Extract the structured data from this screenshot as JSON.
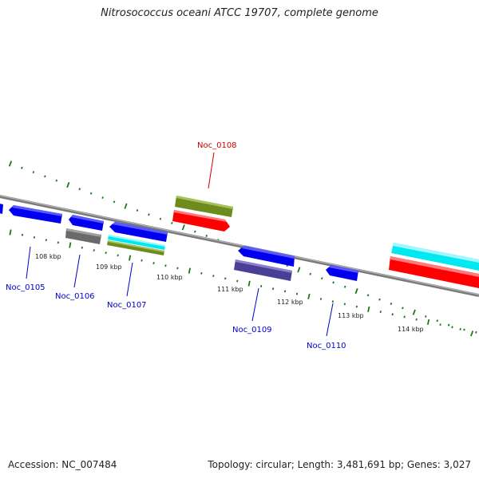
{
  "title": "Nitrosococcus oceani ATCC 19707, complete genome",
  "accession": "Accession: NC_007484",
  "topology": "Topology: circular; Length: 3,481,691 bp; Genes: 3,027",
  "colors": {
    "backbone": "#8a8a8a",
    "tick": "#1a7a1a",
    "forward_gene": "#0000ee",
    "reverse_gene_red": "#ff0000",
    "olive": "#6e8c1e",
    "cyan": "#00e8f0",
    "gray": "#6a6a6a",
    "purple": "#4a3f96",
    "label_blue": "#0000cc",
    "label_red": "#cc0000"
  },
  "gene_labels": [
    {
      "id": "noc0105",
      "text": "Noc_0105",
      "color": "blue"
    },
    {
      "id": "noc0106",
      "text": "Noc_0106",
      "color": "blue"
    },
    {
      "id": "noc0107",
      "text": "Noc_0107",
      "color": "blue"
    },
    {
      "id": "noc0108",
      "text": "Noc_0108",
      "color": "red"
    },
    {
      "id": "noc0109",
      "text": "Noc_0109",
      "color": "blue"
    },
    {
      "id": "noc0110",
      "text": "Noc_0110",
      "color": "blue"
    }
  ],
  "tick_labels": [
    "108 kbp",
    "109 kbp",
    "110 kbp",
    "111 kbp",
    "112 kbp",
    "113 kbp",
    "114 kbp"
  ]
}
